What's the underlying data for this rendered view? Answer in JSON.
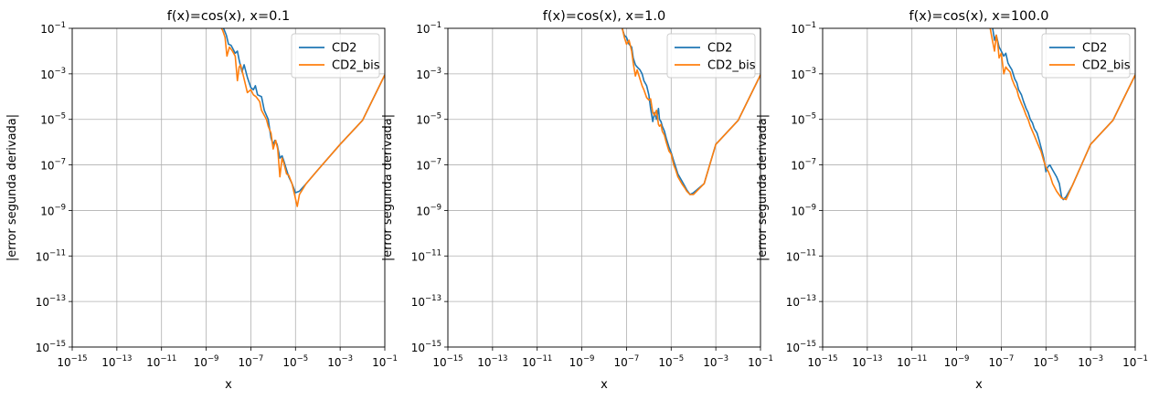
{
  "chart_data": [
    {
      "type": "line",
      "title": "f(x)=cos(x), x=0.1",
      "xlabel": "x",
      "ylabel": "|error segunda derivada|",
      "xscale": "log",
      "yscale": "log",
      "xlim": [
        1e-15,
        0.1
      ],
      "ylim": [
        1e-15,
        0.1
      ],
      "grid": true,
      "legend_position": "top-right",
      "xticks": [
        "10^-15",
        "10^-13",
        "10^-11",
        "10^-9",
        "10^-7",
        "10^-5",
        "10^-3",
        "10^-1"
      ],
      "yticks": [
        "10^-15",
        "10^-13",
        "10^-11",
        "10^-9",
        "10^-7",
        "10^-5",
        "10^-3",
        "10^-1"
      ],
      "series": [
        {
          "name": "CD2",
          "color": "#1f77b4",
          "points": [
            [
              5e-09,
              0.12
            ],
            [
              6e-09,
              0.1
            ],
            [
              8e-09,
              0.05
            ],
            [
              1e-08,
              0.02
            ],
            [
              1.3e-08,
              0.018
            ],
            [
              2e-08,
              0.008
            ],
            [
              2.5e-08,
              0.01
            ],
            [
              3e-08,
              0.004
            ],
            [
              4e-08,
              0.0012
            ],
            [
              5e-08,
              0.0025
            ],
            [
              7e-08,
              0.0007
            ],
            [
              1e-07,
              0.00025
            ],
            [
              1.3e-07,
              0.0002
            ],
            [
              1.6e-07,
              0.0003
            ],
            [
              2e-07,
              0.00012
            ],
            [
              3e-07,
              0.0001
            ],
            [
              4e-07,
              2.5e-05
            ],
            [
              5e-07,
              1.5e-05
            ],
            [
              6e-07,
              1e-05
            ],
            [
              8e-07,
              1.5e-06
            ],
            [
              1e-06,
              8e-07
            ],
            [
              1.2e-06,
              1.2e-06
            ],
            [
              1.5e-06,
              8e-07
            ],
            [
              2e-06,
              2e-07
            ],
            [
              2.5e-06,
              2.5e-07
            ],
            [
              3e-06,
              1.5e-07
            ],
            [
              4e-06,
              6e-08
            ],
            [
              5e-06,
              3e-08
            ],
            [
              7e-06,
              1.5e-08
            ],
            [
              1e-05,
              6e-09
            ],
            [
              1.5e-05,
              7e-09
            ],
            [
              3e-05,
              1.5e-08
            ],
            [
              0.0001,
              6e-08
            ],
            [
              0.001,
              8e-07
            ],
            [
              0.01,
              9e-06
            ],
            [
              0.1,
              0.0009
            ]
          ]
        },
        {
          "name": "CD2_bis",
          "color": "#ff7f0e",
          "points": [
            [
              4e-09,
              0.14
            ],
            [
              5.5e-09,
              0.08
            ],
            [
              7e-09,
              0.04
            ],
            [
              8.5e-09,
              0.006
            ],
            [
              1.1e-08,
              0.015
            ],
            [
              1.5e-08,
              0.01
            ],
            [
              2e-08,
              0.006
            ],
            [
              2.5e-08,
              0.0005
            ],
            [
              3e-08,
              0.002
            ],
            [
              3.5e-08,
              0.0025
            ],
            [
              5e-08,
              0.0006
            ],
            [
              7e-08,
              0.00015
            ],
            [
              1e-07,
              0.0002
            ],
            [
              1.3e-07,
              0.00012
            ],
            [
              1.7e-07,
              0.0001
            ],
            [
              2.5e-07,
              6e-05
            ],
            [
              3e-07,
              2.5e-05
            ],
            [
              5e-07,
              1e-05
            ],
            [
              6e-07,
              5e-06
            ],
            [
              8e-07,
              2.5e-06
            ],
            [
              1e-06,
              5e-07
            ],
            [
              1.3e-06,
              1.2e-06
            ],
            [
              1.6e-06,
              5e-07
            ],
            [
              2e-06,
              3e-08
            ],
            [
              2.5e-06,
              2e-07
            ],
            [
              3e-06,
              1.2e-07
            ],
            [
              4e-06,
              4e-08
            ],
            [
              5e-06,
              3.5e-08
            ],
            [
              7e-06,
              1.5e-08
            ],
            [
              1.2e-05,
              1.5e-09
            ],
            [
              1.5e-05,
              5e-09
            ],
            [
              3e-05,
              1.5e-08
            ],
            [
              0.0001,
              6e-08
            ],
            [
              0.001,
              8e-07
            ],
            [
              0.01,
              9e-06
            ],
            [
              0.1,
              0.0009
            ]
          ]
        }
      ]
    },
    {
      "type": "line",
      "title": "f(x)=cos(x), x=1.0",
      "xlabel": "x",
      "ylabel": "|error segunda derivada|",
      "xscale": "log",
      "yscale": "log",
      "xlim": [
        1e-15,
        0.1
      ],
      "ylim": [
        1e-15,
        0.1
      ],
      "grid": true,
      "legend_position": "top-right",
      "xticks": [
        "10^-15",
        "10^-13",
        "10^-11",
        "10^-9",
        "10^-7",
        "10^-5",
        "10^-3",
        "10^-1"
      ],
      "yticks": [
        "10^-15",
        "10^-13",
        "10^-11",
        "10^-9",
        "10^-7",
        "10^-5",
        "10^-3",
        "10^-1"
      ],
      "series": [
        {
          "name": "CD2",
          "color": "#1f77b4",
          "points": [
            [
              6e-08,
              0.12
            ],
            [
              8e-08,
              0.05
            ],
            [
              1e-07,
              0.04
            ],
            [
              1.3e-07,
              0.02
            ],
            [
              1.7e-07,
              0.015
            ],
            [
              2e-07,
              0.005
            ],
            [
              2.5e-07,
              0.0025
            ],
            [
              3e-07,
              0.002
            ],
            [
              4e-07,
              0.0015
            ],
            [
              5e-07,
              0.001
            ],
            [
              6e-07,
              0.0005
            ],
            [
              8e-07,
              0.0003
            ],
            [
              1e-06,
              0.00012
            ],
            [
              1.2e-06,
              3e-05
            ],
            [
              1.5e-06,
              8e-06
            ],
            [
              1.8e-06,
              2e-05
            ],
            [
              2.2e-06,
              1e-05
            ],
            [
              2.7e-06,
              3e-05
            ],
            [
              3e-06,
              1e-05
            ],
            [
              3.5e-06,
              8e-06
            ],
            [
              4e-06,
              5e-06
            ],
            [
              5e-06,
              3e-06
            ],
            [
              6e-06,
              1.5e-06
            ],
            [
              8e-06,
              6e-07
            ],
            [
              1e-05,
              3.5e-07
            ],
            [
              1.3e-05,
              1.5e-07
            ],
            [
              1.6e-05,
              8e-08
            ],
            [
              2e-05,
              4e-08
            ],
            [
              3e-05,
              2e-08
            ],
            [
              4e-05,
              1.2e-08
            ],
            [
              5e-05,
              8e-09
            ],
            [
              7e-05,
              5e-09
            ],
            [
              0.0001,
              6e-09
            ],
            [
              0.0003,
              1.5e-08
            ],
            [
              0.001,
              8e-07
            ],
            [
              0.01,
              9e-06
            ],
            [
              0.1,
              0.0009
            ]
          ]
        },
        {
          "name": "CD2_bis",
          "color": "#ff7f0e",
          "points": [
            [
              6e-08,
              0.14
            ],
            [
              8e-08,
              0.04
            ],
            [
              1e-07,
              0.02
            ],
            [
              1.3e-07,
              0.03
            ],
            [
              1.7e-07,
              0.01
            ],
            [
              2e-07,
              0.003
            ],
            [
              2.5e-07,
              0.0008
            ],
            [
              3e-07,
              0.0015
            ],
            [
              4e-07,
              0.0006
            ],
            [
              5e-07,
              0.0003
            ],
            [
              6e-07,
              0.0002
            ],
            [
              8e-07,
              9e-05
            ],
            [
              1e-06,
              7e-05
            ],
            [
              1.2e-06,
              8e-05
            ],
            [
              1.5e-06,
              2e-05
            ],
            [
              1.8e-06,
              1.5e-05
            ],
            [
              2.2e-06,
              2.5e-05
            ],
            [
              2.7e-06,
              6e-06
            ],
            [
              3e-06,
              5e-06
            ],
            [
              3.5e-06,
              6e-06
            ],
            [
              4e-06,
              3e-06
            ],
            [
              5e-06,
              2e-06
            ],
            [
              6e-06,
              1e-06
            ],
            [
              8e-06,
              4e-07
            ],
            [
              1e-05,
              3e-07
            ],
            [
              1.3e-05,
              1e-07
            ],
            [
              1.6e-05,
              6e-08
            ],
            [
              2e-05,
              3e-08
            ],
            [
              3e-05,
              1.5e-08
            ],
            [
              4e-05,
              1e-08
            ],
            [
              5e-05,
              7e-09
            ],
            [
              7e-05,
              5e-09
            ],
            [
              0.0001,
              5e-09
            ],
            [
              0.0003,
              1.5e-08
            ],
            [
              0.001,
              8e-07
            ],
            [
              0.01,
              9e-06
            ],
            [
              0.1,
              0.0009
            ]
          ]
        }
      ]
    },
    {
      "type": "line",
      "title": "f(x)=cos(x), x=100.0",
      "xlabel": "x",
      "ylabel": "|error segunda derivada|",
      "xscale": "log",
      "yscale": "log",
      "xlim": [
        1e-15,
        0.1
      ],
      "ylim": [
        1e-15,
        0.1
      ],
      "grid": true,
      "legend_position": "top-right",
      "xticks": [
        "10^-15",
        "10^-13",
        "10^-11",
        "10^-9",
        "10^-7",
        "10^-5",
        "10^-3",
        "10^-1"
      ],
      "yticks": [
        "10^-15",
        "10^-13",
        "10^-11",
        "10^-9",
        "10^-7",
        "10^-5",
        "10^-3",
        "10^-1"
      ],
      "series": [
        {
          "name": "CD2",
          "color": "#1f77b4",
          "points": [
            [
              4e-08,
              0.12
            ],
            [
              5e-08,
              0.03
            ],
            [
              6e-08,
              0.05
            ],
            [
              8e-08,
              0.015
            ],
            [
              1e-07,
              0.01
            ],
            [
              1.3e-07,
              0.006
            ],
            [
              1.6e-07,
              0.008
            ],
            [
              2e-07,
              0.003
            ],
            [
              2.5e-07,
              0.002
            ],
            [
              3e-07,
              0.0015
            ],
            [
              4e-07,
              0.0006
            ],
            [
              5e-07,
              0.0004
            ],
            [
              6e-07,
              0.0002
            ],
            [
              8e-07,
              0.00012
            ],
            [
              1e-06,
              6e-05
            ],
            [
              1.3e-06,
              3e-05
            ],
            [
              1.6e-06,
              2e-05
            ],
            [
              2e-06,
              1e-05
            ],
            [
              2.5e-06,
              7e-06
            ],
            [
              3e-06,
              4e-06
            ],
            [
              4e-06,
              2.5e-06
            ],
            [
              5e-06,
              1.2e-06
            ],
            [
              6e-06,
              6e-07
            ],
            [
              8e-06,
              2e-07
            ],
            [
              1e-05,
              5e-08
            ],
            [
              1.2e-05,
              8e-08
            ],
            [
              1.5e-05,
              1e-07
            ],
            [
              2e-05,
              6e-08
            ],
            [
              3e-05,
              3e-08
            ],
            [
              4e-05,
              1.5e-08
            ],
            [
              5e-05,
              4e-09
            ],
            [
              6e-05,
              3e-09
            ],
            [
              8e-05,
              4e-09
            ],
            [
              0.00015,
              1.2e-08
            ],
            [
              0.001,
              8e-07
            ],
            [
              0.01,
              9e-06
            ],
            [
              0.1,
              0.0009
            ]
          ]
        },
        {
          "name": "CD2_bis",
          "color": "#ff7f0e",
          "points": [
            [
              3e-08,
              0.14
            ],
            [
              4e-08,
              0.03
            ],
            [
              5e-08,
              0.01
            ],
            [
              6e-08,
              0.05
            ],
            [
              7e-08,
              0.02
            ],
            [
              8e-08,
              0.005
            ],
            [
              1e-07,
              0.008
            ],
            [
              1.3e-07,
              0.001
            ],
            [
              1.6e-07,
              0.002
            ],
            [
              2e-07,
              0.0015
            ],
            [
              2.5e-07,
              0.0012
            ],
            [
              3e-07,
              0.0006
            ],
            [
              4e-07,
              0.0003
            ],
            [
              5e-07,
              0.0002
            ],
            [
              6e-07,
              0.0001
            ],
            [
              8e-07,
              5e-05
            ],
            [
              1e-06,
              3e-05
            ],
            [
              1.3e-06,
              1.5e-05
            ],
            [
              1.6e-06,
              1e-05
            ],
            [
              2e-06,
              5e-06
            ],
            [
              2.5e-06,
              3e-06
            ],
            [
              3e-06,
              2e-06
            ],
            [
              4e-06,
              1e-06
            ],
            [
              5e-06,
              6e-07
            ],
            [
              6e-06,
              4e-07
            ],
            [
              8e-06,
              1.5e-07
            ],
            [
              1e-05,
              8e-08
            ],
            [
              1.3e-05,
              5e-08
            ],
            [
              1.6e-05,
              3e-08
            ],
            [
              2e-05,
              1.5e-08
            ],
            [
              3e-05,
              7e-09
            ],
            [
              5e-05,
              3.5e-09
            ],
            [
              8e-05,
              3e-09
            ],
            [
              0.00015,
              1.2e-08
            ],
            [
              0.001,
              8e-07
            ],
            [
              0.01,
              9e-06
            ],
            [
              0.1,
              0.0009
            ]
          ]
        }
      ]
    }
  ]
}
